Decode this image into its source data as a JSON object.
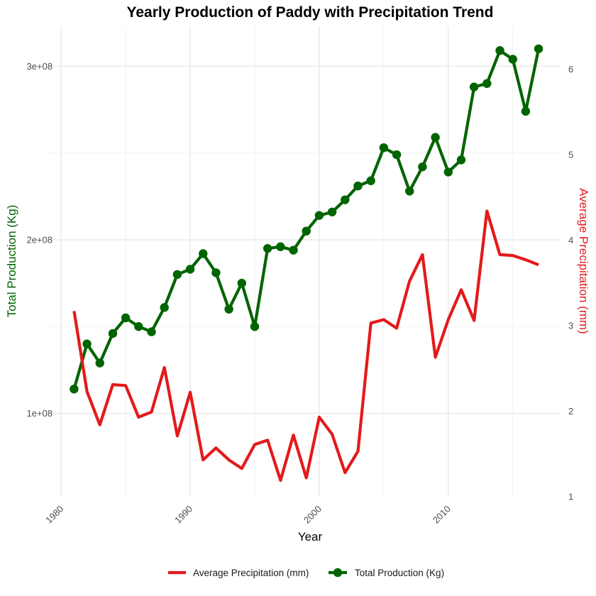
{
  "chart_data": {
    "type": "line",
    "title": "Yearly Production of Paddy with Precipitation Trend",
    "xlabel": "Year",
    "ylabel_left": "Total Production (Kg)",
    "ylabel_right": "Average Precipitation (mm)",
    "xlim": [
      1979,
      2018.7
    ],
    "ylim_left": [
      52000000,
      323000000
    ],
    "ylim_right": [
      1,
      6.5
    ],
    "x_ticks": [
      1980,
      1990,
      2000,
      2010
    ],
    "x_tick_labels": [
      "1980",
      "1990",
      "2000",
      "2010"
    ],
    "y_left_ticks": [
      100000000,
      200000000,
      300000000
    ],
    "y_left_tick_labels": [
      "1e+08",
      "2e+08",
      "3e+08"
    ],
    "y_left_minor": [
      150000000,
      250000000
    ],
    "y_right_ticks": [
      1,
      2,
      3,
      4,
      5,
      6
    ],
    "y_right_tick_labels": [
      "1",
      "2",
      "3",
      "4",
      "5",
      "6"
    ],
    "grid": true,
    "legend_position": "bottom",
    "years": [
      1981,
      1982,
      1983,
      1984,
      1985,
      1986,
      1987,
      1988,
      1989,
      1990,
      1991,
      1992,
      1993,
      1994,
      1995,
      1996,
      1997,
      1998,
      1999,
      2000,
      2001,
      2002,
      2003,
      2004,
      2005,
      2006,
      2007,
      2008,
      2009,
      2010,
      2011,
      2012,
      2013,
      2014,
      2015,
      2016,
      2017
    ],
    "series": [
      {
        "name": "Total Production (Kg)",
        "axis": "left",
        "color": "#006400",
        "markers": true,
        "values": [
          114000000,
          140000000,
          129000000,
          146000000,
          155000000,
          150000000,
          147000000,
          161000000,
          180000000,
          183000000,
          192000000,
          181000000,
          160000000,
          175000000,
          150000000,
          195000000,
          196000000,
          194000000,
          205000000,
          214000000,
          216000000,
          223000000,
          231000000,
          234000000,
          253000000,
          249000000,
          228000000,
          242000000,
          259000000,
          239000000,
          246000000,
          288000000,
          290000000,
          309000000,
          304000000,
          274000000,
          310000000
        ]
      },
      {
        "name": "Average Precipitation (mm)",
        "axis": "right",
        "color": "#e31a1c",
        "markers": false,
        "values": [
          3.17,
          2.23,
          1.84,
          2.31,
          2.3,
          1.93,
          1.99,
          2.51,
          1.71,
          2.22,
          1.43,
          1.57,
          1.43,
          1.33,
          1.61,
          1.66,
          1.19,
          1.72,
          1.22,
          1.93,
          1.73,
          1.28,
          1.53,
          3.03,
          3.07,
          2.97,
          3.52,
          3.83,
          2.63,
          3.07,
          3.42,
          3.06,
          4.34,
          3.83,
          3.82,
          3.77,
          3.71
        ]
      }
    ],
    "legend": [
      {
        "label": "Average Precipitation (mm)",
        "color": "#e31a1c",
        "markers": false
      },
      {
        "label": "Total Production (Kg)",
        "color": "#006400",
        "markers": true
      }
    ]
  }
}
